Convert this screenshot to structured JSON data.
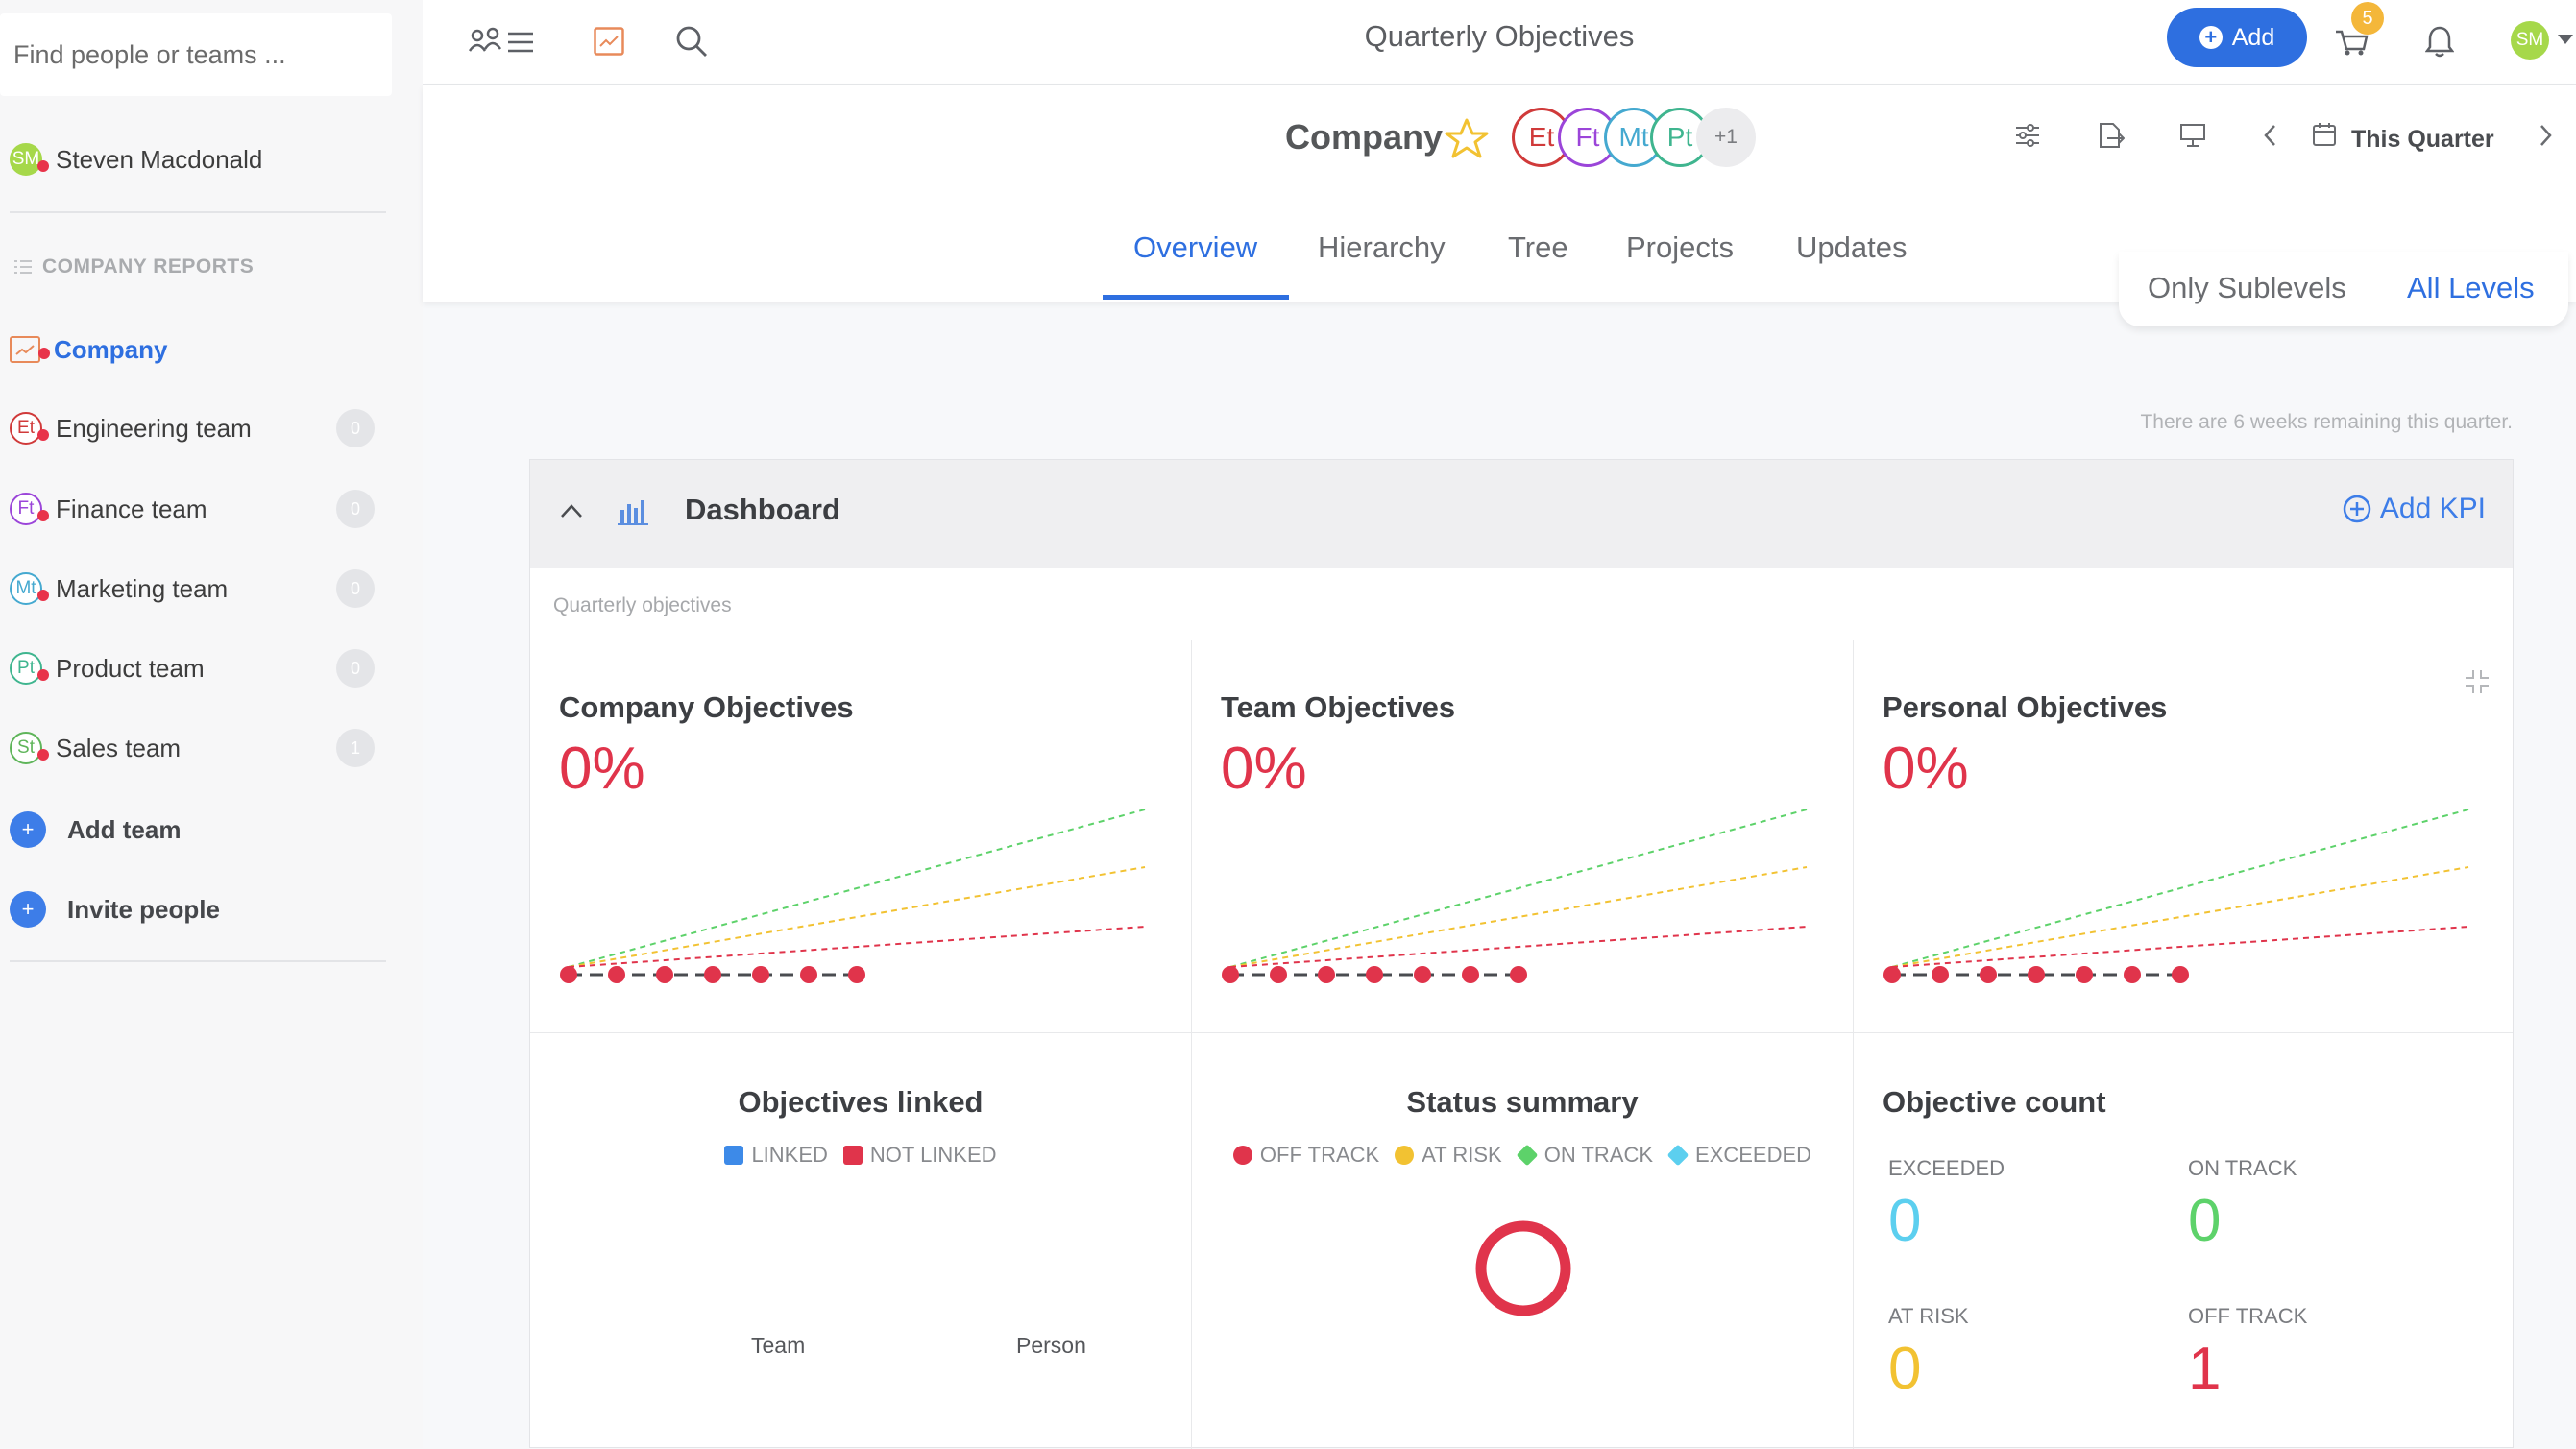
{
  "sidebar": {
    "search_placeholder": "Find people or teams ...",
    "user": {
      "initials": "SM",
      "name": "Steven Macdonald"
    },
    "section_title": "COMPANY REPORTS",
    "company_label": "Company",
    "teams": [
      {
        "initials": "Et",
        "name": "Engineering team",
        "count": "0",
        "color": "#d03a3a"
      },
      {
        "initials": "Ft",
        "name": "Finance team",
        "count": "0",
        "color": "#9b45d9"
      },
      {
        "initials": "Mt",
        "name": "Marketing team",
        "count": "0",
        "color": "#45a9d0"
      },
      {
        "initials": "Pt",
        "name": "Product team",
        "count": "0",
        "color": "#3fb58f"
      },
      {
        "initials": "St",
        "name": "Sales team",
        "count": "1",
        "color": "#5fb55a"
      }
    ],
    "add_team_label": "Add team",
    "invite_label": "Invite people"
  },
  "topbar": {
    "title": "Quarterly Objectives",
    "add_label": "Add",
    "notification_count": "5",
    "avatar_initials": "SM",
    "icons": [
      "team-list-icon",
      "chart-icon",
      "search-icon",
      "cart-icon",
      "bell-icon"
    ]
  },
  "header": {
    "company_title": "Company",
    "team_bubbles": [
      {
        "initials": "Et",
        "color": "#d03a3a"
      },
      {
        "initials": "Ft",
        "color": "#9b45d9"
      },
      {
        "initials": "Mt",
        "color": "#45a9d0"
      },
      {
        "initials": "Pt",
        "color": "#3fb58f"
      }
    ],
    "more_count": "+1",
    "period_label": "This Quarter",
    "tabs": [
      "Overview",
      "Hierarchy",
      "Tree",
      "Projects",
      "Updates"
    ],
    "active_tab": "Overview",
    "level_options": [
      "Only Sublevels",
      "All Levels"
    ],
    "active_level": "All Levels"
  },
  "weeks_note": "There are 6 weeks remaining this quarter.",
  "dashboard": {
    "title": "Dashboard",
    "add_kpi_label": "Add KPI",
    "subheader": "Quarterly objectives",
    "objectives": [
      {
        "title": "Company Objectives",
        "percent": "0%"
      },
      {
        "title": "Team Objectives",
        "percent": "0%"
      },
      {
        "title": "Personal Objectives",
        "percent": "0%"
      }
    ],
    "linked": {
      "title": "Objectives linked",
      "legend": [
        {
          "label": "LINKED",
          "color": "#3d8ae8"
        },
        {
          "label": "NOT LINKED",
          "color": "#e0344b"
        }
      ],
      "axis": [
        "Team",
        "Person"
      ]
    },
    "status": {
      "title": "Status summary",
      "legend": [
        {
          "label": "OFF TRACK",
          "color": "#e0344b",
          "shape": "circle"
        },
        {
          "label": "AT RISK",
          "color": "#f2c232",
          "shape": "circle"
        },
        {
          "label": "ON TRACK",
          "color": "#5dd26a",
          "shape": "diamond"
        },
        {
          "label": "EXCEEDED",
          "color": "#5ccfef",
          "shape": "diamond"
        }
      ]
    },
    "count": {
      "title": "Objective count",
      "items": [
        {
          "label": "EXCEEDED",
          "value": "0",
          "color": "#5ccfef"
        },
        {
          "label": "ON TRACK",
          "value": "0",
          "color": "#5dd26a"
        },
        {
          "label": "AT RISK",
          "value": "0",
          "color": "#f2c232"
        },
        {
          "label": "OFF TRACK",
          "value": "1",
          "color": "#e0344b"
        }
      ]
    }
  }
}
